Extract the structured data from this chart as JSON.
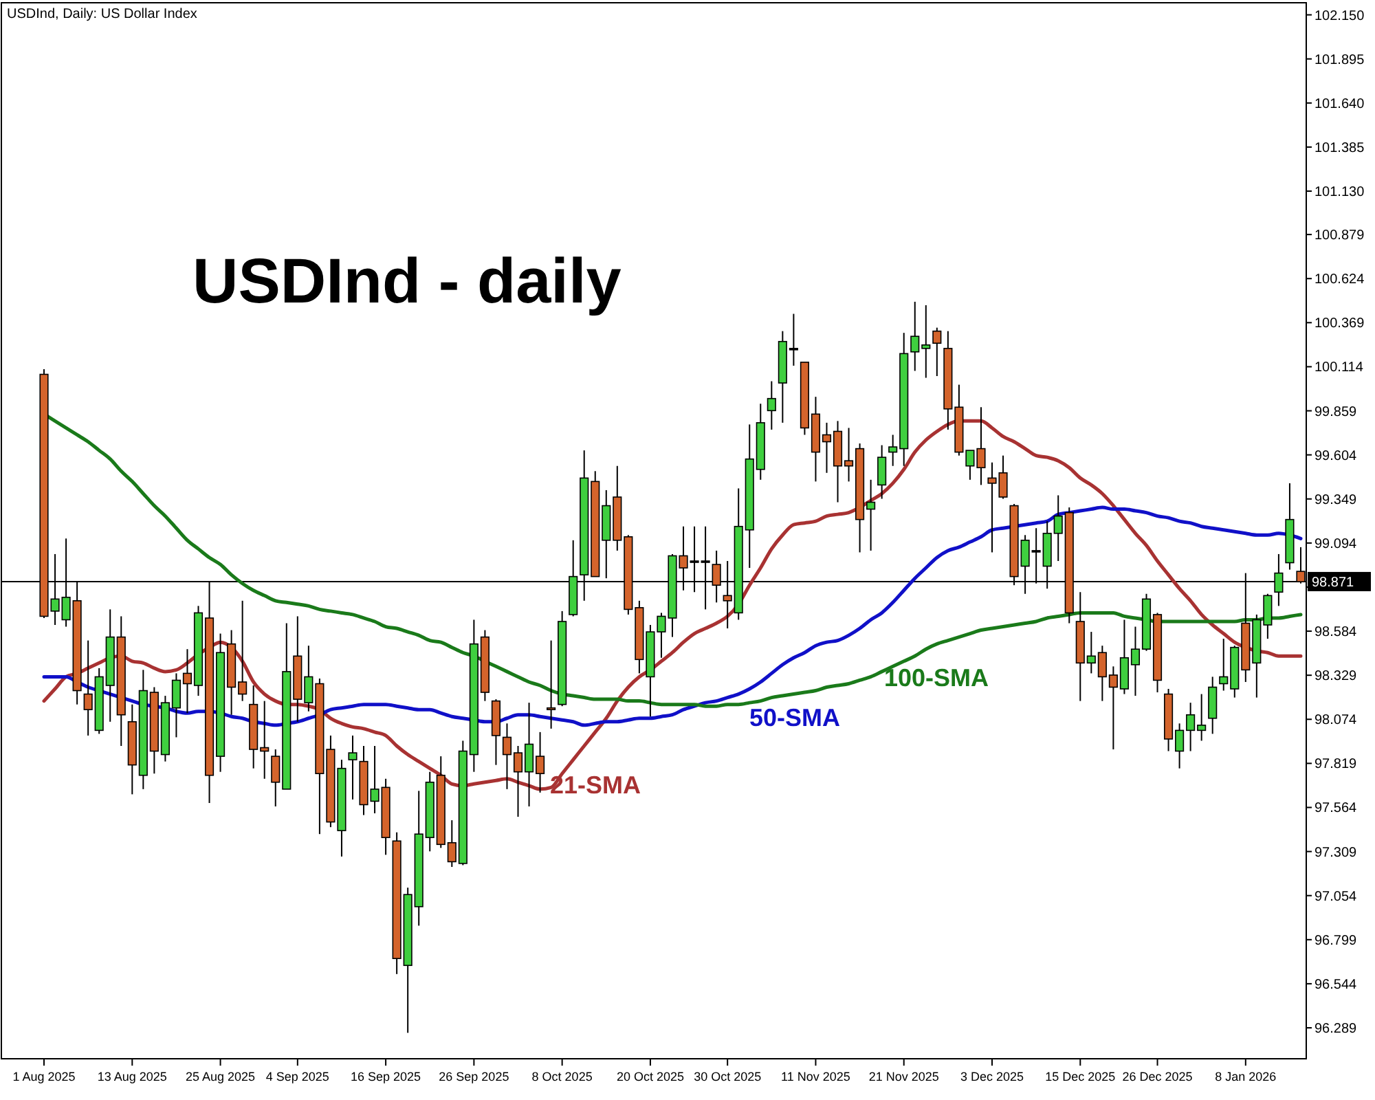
{
  "chart_data": {
    "type": "candlestick",
    "title": "USDInd - daily",
    "subtitle": "USDInd, Daily:  US Dollar Index",
    "categories": [
      "1 Aug 2025",
      null,
      null,
      null,
      null,
      null,
      null,
      null,
      "13 Aug 2025",
      null,
      null,
      null,
      null,
      null,
      null,
      null,
      "25 Aug 2025",
      null,
      null,
      null,
      null,
      null,
      null,
      "4 Sep 2025",
      null,
      null,
      null,
      null,
      null,
      null,
      null,
      "16 Sep 2025",
      null,
      null,
      null,
      null,
      null,
      null,
      null,
      "26 Sep 2025",
      null,
      null,
      null,
      null,
      null,
      null,
      null,
      "8 Oct 2025",
      null,
      null,
      null,
      null,
      null,
      null,
      null,
      "20 Oct 2025",
      null,
      null,
      null,
      null,
      null,
      null,
      "30 Oct 2025",
      null,
      null,
      null,
      null,
      null,
      null,
      null,
      "11 Nov 2025",
      null,
      null,
      null,
      null,
      null,
      null,
      null,
      "21 Nov 2025",
      null,
      null,
      null,
      null,
      null,
      null,
      null,
      "3 Dec 2025",
      null,
      null,
      null,
      null,
      null,
      null,
      null,
      "15 Dec 2025",
      null,
      null,
      null,
      null,
      null,
      null,
      "26 Dec 2025",
      null,
      null,
      null,
      null,
      null,
      null,
      null,
      "8 Jan 2026",
      null,
      null,
      null,
      null,
      null
    ],
    "ohlc": [
      [
        100.07,
        100.1,
        98.66,
        98.67
      ],
      [
        98.7,
        99.03,
        98.62,
        98.77
      ],
      [
        98.65,
        99.12,
        98.61,
        98.78
      ],
      [
        98.76,
        98.87,
        98.16,
        98.24
      ],
      [
        98.22,
        98.53,
        97.98,
        98.13
      ],
      [
        98.01,
        98.37,
        97.99,
        98.32
      ],
      [
        98.27,
        98.71,
        98.06,
        98.55
      ],
      [
        98.55,
        98.67,
        97.92,
        98.1
      ],
      [
        98.06,
        98.16,
        97.64,
        97.81
      ],
      [
        97.75,
        98.36,
        97.67,
        98.24
      ],
      [
        98.23,
        98.26,
        97.76,
        97.89
      ],
      [
        97.87,
        98.21,
        97.83,
        98.17
      ],
      [
        98.14,
        98.34,
        97.97,
        98.3
      ],
      [
        98.34,
        98.48,
        98.11,
        98.28
      ],
      [
        98.27,
        98.73,
        98.21,
        98.69
      ],
      [
        98.66,
        98.87,
        97.59,
        97.75
      ],
      [
        97.86,
        98.57,
        97.77,
        98.46
      ],
      [
        98.51,
        98.59,
        98.1,
        98.26
      ],
      [
        98.29,
        98.76,
        98.18,
        98.22
      ],
      [
        98.16,
        98.27,
        97.79,
        97.9
      ],
      [
        97.91,
        98.18,
        97.73,
        97.89
      ],
      [
        97.86,
        97.9,
        97.57,
        97.71
      ],
      [
        97.67,
        98.63,
        97.67,
        98.35
      ],
      [
        98.44,
        98.67,
        98.06,
        98.19
      ],
      [
        98.17,
        98.5,
        98.12,
        98.32
      ],
      [
        98.28,
        98.31,
        97.41,
        97.76
      ],
      [
        97.9,
        97.98,
        97.45,
        97.48
      ],
      [
        97.43,
        97.84,
        97.28,
        97.79
      ],
      [
        97.84,
        97.98,
        97.61,
        97.88
      ],
      [
        97.83,
        97.92,
        97.52,
        97.58
      ],
      [
        97.6,
        97.92,
        97.53,
        97.67
      ],
      [
        97.68,
        97.73,
        97.29,
        97.39
      ],
      [
        97.37,
        97.42,
        96.6,
        96.69
      ],
      [
        96.65,
        97.1,
        96.26,
        97.06
      ],
      [
        96.99,
        97.66,
        96.88,
        97.41
      ],
      [
        97.39,
        97.77,
        97.31,
        97.71
      ],
      [
        97.75,
        97.86,
        97.33,
        97.35
      ],
      [
        97.36,
        97.49,
        97.22,
        97.25
      ],
      [
        97.24,
        97.95,
        97.23,
        97.89
      ],
      [
        97.87,
        98.65,
        97.77,
        98.51
      ],
      [
        98.55,
        98.59,
        98.18,
        98.23
      ],
      [
        98.18,
        98.19,
        97.81,
        97.98
      ],
      [
        97.97,
        98.05,
        97.67,
        97.87
      ],
      [
        97.88,
        97.92,
        97.51,
        97.77
      ],
      [
        97.77,
        98.17,
        97.57,
        97.93
      ],
      [
        97.86,
        98.0,
        97.65,
        97.76
      ],
      [
        98.14,
        98.53,
        98.02,
        98.13
      ],
      [
        98.16,
        98.7,
        98.15,
        98.64
      ],
      [
        98.68,
        99.11,
        98.67,
        98.9
      ],
      [
        98.91,
        99.63,
        98.76,
        99.47
      ],
      [
        99.45,
        99.51,
        98.9,
        98.9
      ],
      [
        99.11,
        99.4,
        98.89,
        99.31
      ],
      [
        99.36,
        99.54,
        99.05,
        99.11
      ],
      [
        99.13,
        99.14,
        98.68,
        98.71
      ],
      [
        98.72,
        98.76,
        98.34,
        98.42
      ],
      [
        98.32,
        98.62,
        98.09,
        98.58
      ],
      [
        98.58,
        98.69,
        98.43,
        98.67
      ],
      [
        98.66,
        99.03,
        98.55,
        99.02
      ],
      [
        99.02,
        99.19,
        98.82,
        98.95
      ],
      [
        98.99,
        99.19,
        98.81,
        98.99
      ],
      [
        98.99,
        99.19,
        98.71,
        98.99
      ],
      [
        98.97,
        99.05,
        98.75,
        98.85
      ],
      [
        98.79,
        98.99,
        98.6,
        98.76
      ],
      [
        98.69,
        99.41,
        98.65,
        99.19
      ],
      [
        99.17,
        99.78,
        98.95,
        99.58
      ],
      [
        99.52,
        99.9,
        99.46,
        99.79
      ],
      [
        99.86,
        100.03,
        99.75,
        99.93
      ],
      [
        100.02,
        100.32,
        99.79,
        100.26
      ],
      [
        100.22,
        100.42,
        100.12,
        100.22
      ],
      [
        100.14,
        100.14,
        99.72,
        99.76
      ],
      [
        99.84,
        99.94,
        99.45,
        99.62
      ],
      [
        99.72,
        99.79,
        99.5,
        99.68
      ],
      [
        99.74,
        99.8,
        99.33,
        99.54
      ],
      [
        99.57,
        99.76,
        99.45,
        99.54
      ],
      [
        99.64,
        99.67,
        99.04,
        99.23
      ],
      [
        99.29,
        99.46,
        99.05,
        99.33
      ],
      [
        99.43,
        99.66,
        99.35,
        99.59
      ],
      [
        99.62,
        99.72,
        99.54,
        99.65
      ],
      [
        99.64,
        100.31,
        99.54,
        100.19
      ],
      [
        100.2,
        100.49,
        100.09,
        100.29
      ],
      [
        100.22,
        100.47,
        100.05,
        100.24
      ],
      [
        100.32,
        100.34,
        100.06,
        100.25
      ],
      [
        100.22,
        100.32,
        99.75,
        99.87
      ],
      [
        99.88,
        100.01,
        99.6,
        99.62
      ],
      [
        99.54,
        99.63,
        99.46,
        99.63
      ],
      [
        99.64,
        99.88,
        99.43,
        99.53
      ],
      [
        99.47,
        99.56,
        99.04,
        99.44
      ],
      [
        99.5,
        99.6,
        99.35,
        99.36
      ],
      [
        99.31,
        99.32,
        98.85,
        98.9
      ],
      [
        98.96,
        99.14,
        98.8,
        99.11
      ],
      [
        99.05,
        99.18,
        98.86,
        99.05
      ],
      [
        98.96,
        99.22,
        98.83,
        99.15
      ],
      [
        99.15,
        99.37,
        98.99,
        99.25
      ],
      [
        99.27,
        99.3,
        98.63,
        98.69
      ],
      [
        98.64,
        98.81,
        98.18,
        98.4
      ],
      [
        98.4,
        98.58,
        98.34,
        98.44
      ],
      [
        98.46,
        98.5,
        98.18,
        98.32
      ],
      [
        98.33,
        98.38,
        97.9,
        98.26
      ],
      [
        98.25,
        98.65,
        98.22,
        98.43
      ],
      [
        98.39,
        98.61,
        98.21,
        98.48
      ],
      [
        98.48,
        98.8,
        98.47,
        98.77
      ],
      [
        98.68,
        98.69,
        98.23,
        98.3
      ],
      [
        98.22,
        98.25,
        97.89,
        97.96
      ],
      [
        97.89,
        98.05,
        97.79,
        98.01
      ],
      [
        98.01,
        98.17,
        97.89,
        98.1
      ],
      [
        98.01,
        98.22,
        97.95,
        98.04
      ],
      [
        98.08,
        98.32,
        97.99,
        98.26
      ],
      [
        98.28,
        98.54,
        98.24,
        98.32
      ],
      [
        98.25,
        98.5,
        98.2,
        98.49
      ],
      [
        98.63,
        98.92,
        98.29,
        98.36
      ],
      [
        98.4,
        98.68,
        98.2,
        98.65
      ],
      [
        98.62,
        98.8,
        98.54,
        98.79
      ],
      [
        98.81,
        99.03,
        98.73,
        98.92
      ],
      [
        98.98,
        99.44,
        98.94,
        99.23
      ],
      [
        98.93,
        99.07,
        98.86,
        98.87
      ]
    ],
    "colors": [
      "#d4642c",
      "#3fcf3f",
      "#3fcf3f",
      "#d4642c",
      "#d4642c",
      "#3fcf3f",
      "#3fcf3f",
      "#d4642c",
      "#d4642c",
      "#3fcf3f",
      "#d4642c",
      "#3fcf3f",
      "#3fcf3f",
      "#d4642c",
      "#3fcf3f",
      "#d4642c",
      "#3fcf3f",
      "#d4642c",
      "#d4642c",
      "#d4642c",
      "#d4642c",
      "#d4642c",
      "#3fcf3f",
      "#d4642c",
      "#3fcf3f",
      "#d4642c",
      "#d4642c",
      "#3fcf3f",
      "#3fcf3f",
      "#d4642c",
      "#3fcf3f",
      "#d4642c",
      "#d4642c",
      "#3fcf3f",
      "#3fcf3f",
      "#3fcf3f",
      "#d4642c",
      "#d4642c",
      "#3fcf3f",
      "#3fcf3f",
      "#d4642c",
      "#d4642c",
      "#d4642c",
      "#d4642c",
      "#3fcf3f",
      "#d4642c",
      "#d4642c",
      "#3fcf3f",
      "#3fcf3f",
      "#3fcf3f",
      "#d4642c",
      "#3fcf3f",
      "#d4642c",
      "#d4642c",
      "#d4642c",
      "#3fcf3f",
      "#3fcf3f",
      "#3fcf3f",
      "#d4642c",
      "#000000",
      "#000000",
      "#d4642c",
      "#d4642c",
      "#3fcf3f",
      "#3fcf3f",
      "#3fcf3f",
      "#3fcf3f",
      "#3fcf3f",
      "#000000",
      "#d4642c",
      "#d4642c",
      "#d4642c",
      "#d4642c",
      "#d4642c",
      "#d4642c",
      "#3fcf3f",
      "#3fcf3f",
      "#3fcf3f",
      "#3fcf3f",
      "#3fcf3f",
      "#3fcf3f",
      "#d4642c",
      "#d4642c",
      "#d4642c",
      "#3fcf3f",
      "#d4642c",
      "#d4642c",
      "#d4642c",
      "#d4642c",
      "#3fcf3f",
      "#000000",
      "#3fcf3f",
      "#3fcf3f",
      "#d4642c",
      "#d4642c",
      "#3fcf3f",
      "#d4642c",
      "#d4642c",
      "#3fcf3f",
      "#3fcf3f",
      "#3fcf3f",
      "#d4642c",
      "#d4642c",
      "#3fcf3f",
      "#3fcf3f",
      "#3fcf3f",
      "#3fcf3f",
      "#3fcf3f",
      "#3fcf3f",
      "#d4642c",
      "#3fcf3f",
      "#3fcf3f",
      "#3fcf3f",
      "#3fcf3f",
      "#d4642c"
    ],
    "series": [
      {
        "type": "line",
        "name": "21-SMA",
        "color": "#a83232",
        "values": [
          98.18,
          98.25,
          98.32,
          98.34,
          98.37,
          98.4,
          98.43,
          98.44,
          98.41,
          98.4,
          98.37,
          98.35,
          98.36,
          98.4,
          98.45,
          98.49,
          98.52,
          98.49,
          98.41,
          98.29,
          98.22,
          98.18,
          98.16,
          98.16,
          98.15,
          98.13,
          98.08,
          98.05,
          98.03,
          98.02,
          98.0,
          97.98,
          97.92,
          97.87,
          97.83,
          97.79,
          97.75,
          97.7,
          97.69,
          97.7,
          97.71,
          97.72,
          97.73,
          97.71,
          97.69,
          97.67,
          97.68,
          97.76,
          97.84,
          97.92,
          98.0,
          98.08,
          98.18,
          98.26,
          98.32,
          98.36,
          98.41,
          98.46,
          98.52,
          98.57,
          98.6,
          98.63,
          98.67,
          98.74,
          98.85,
          98.95,
          99.06,
          99.14,
          99.2,
          99.21,
          99.22,
          99.25,
          99.26,
          99.27,
          99.3,
          99.34,
          99.38,
          99.44,
          99.52,
          99.62,
          99.69,
          99.74,
          99.78,
          99.8,
          99.8,
          99.8,
          99.76,
          99.71,
          99.68,
          99.64,
          99.6,
          99.59,
          99.57,
          99.53,
          99.47,
          99.43,
          99.38,
          99.31,
          99.23,
          99.15,
          99.08,
          98.99,
          98.91,
          98.83,
          98.76,
          98.68,
          98.62,
          98.57,
          98.52,
          98.49,
          98.47,
          98.46,
          98.44,
          98.44,
          98.44
        ]
      },
      {
        "type": "line",
        "name": "50-SMA",
        "color": "#1010c8",
        "values": [
          98.32,
          98.32,
          98.32,
          98.29,
          98.26,
          98.24,
          98.22,
          98.2,
          98.18,
          98.16,
          98.15,
          98.14,
          98.12,
          98.11,
          98.12,
          98.12,
          98.11,
          98.09,
          98.08,
          98.06,
          98.05,
          98.04,
          98.05,
          98.06,
          98.08,
          98.1,
          98.13,
          98.14,
          98.15,
          98.16,
          98.16,
          98.16,
          98.15,
          98.14,
          98.13,
          98.13,
          98.11,
          98.09,
          98.08,
          98.07,
          98.06,
          98.06,
          98.08,
          98.1,
          98.1,
          98.09,
          98.08,
          98.07,
          98.06,
          98.04,
          98.05,
          98.06,
          98.06,
          98.07,
          98.08,
          98.08,
          98.09,
          98.1,
          98.13,
          98.15,
          98.17,
          98.18,
          98.2,
          98.22,
          98.25,
          98.29,
          98.34,
          98.39,
          98.43,
          98.46,
          98.5,
          98.52,
          98.53,
          98.56,
          98.6,
          98.65,
          98.69,
          98.75,
          98.82,
          98.89,
          98.95,
          99.01,
          99.05,
          99.07,
          99.1,
          99.13,
          99.17,
          99.18,
          99.19,
          99.2,
          99.21,
          99.22,
          99.26,
          99.27,
          99.28,
          99.29,
          99.3,
          99.29,
          99.29,
          99.28,
          99.27,
          99.25,
          99.24,
          99.22,
          99.21,
          99.19,
          99.18,
          99.17,
          99.16,
          99.15,
          99.14,
          99.14,
          99.15,
          99.14,
          99.12
        ]
      },
      {
        "type": "line",
        "name": "100-SMA",
        "color": "#1a7a1a",
        "values": [
          99.84,
          99.8,
          99.76,
          99.72,
          99.68,
          99.63,
          99.58,
          99.51,
          99.45,
          99.38,
          99.31,
          99.25,
          99.18,
          99.11,
          99.06,
          99.01,
          98.97,
          98.91,
          98.86,
          98.82,
          98.79,
          98.76,
          98.75,
          98.74,
          98.73,
          98.71,
          98.7,
          98.69,
          98.68,
          98.66,
          98.64,
          98.61,
          98.6,
          98.58,
          98.56,
          98.53,
          98.52,
          98.49,
          98.46,
          98.44,
          98.41,
          98.38,
          98.35,
          98.32,
          98.29,
          98.27,
          98.24,
          98.22,
          98.21,
          98.2,
          98.19,
          98.19,
          98.19,
          98.18,
          98.18,
          98.17,
          98.16,
          98.16,
          98.16,
          98.16,
          98.15,
          98.15,
          98.16,
          98.16,
          98.17,
          98.18,
          98.2,
          98.21,
          98.22,
          98.23,
          98.24,
          98.26,
          98.27,
          98.28,
          98.3,
          98.32,
          98.35,
          98.38,
          98.41,
          98.44,
          98.48,
          98.51,
          98.53,
          98.55,
          98.57,
          98.59,
          98.6,
          98.61,
          98.62,
          98.63,
          98.64,
          98.66,
          98.67,
          98.68,
          98.69,
          98.69,
          98.69,
          98.69,
          98.67,
          98.66,
          98.65,
          98.64,
          98.64,
          98.64,
          98.64,
          98.64,
          98.64,
          98.64,
          98.64,
          98.65,
          98.65,
          98.66,
          98.66,
          98.67,
          98.68
        ]
      }
    ],
    "ylim": [
      96.11,
      102.22
    ],
    "yticks": [
      {
        "value": 102.15,
        "label": "102.150"
      },
      101.895,
      {
        "value": 101.64,
        "label": "101.640"
      },
      101.385,
      {
        "value": 101.13,
        "label": "101.130"
      },
      100.879,
      100.624,
      100.369,
      100.114,
      99.859,
      99.604,
      99.349,
      99.094,
      {
        "value": 98.839,
        "label": null
      },
      98.584,
      98.329,
      98.074,
      97.819,
      97.564,
      97.309,
      97.054,
      96.799,
      96.544,
      96.289
    ],
    "ref_lines": [
      {
        "axis": "y",
        "value": 98.871,
        "label": "98.871",
        "color": "#000000"
      }
    ]
  }
}
